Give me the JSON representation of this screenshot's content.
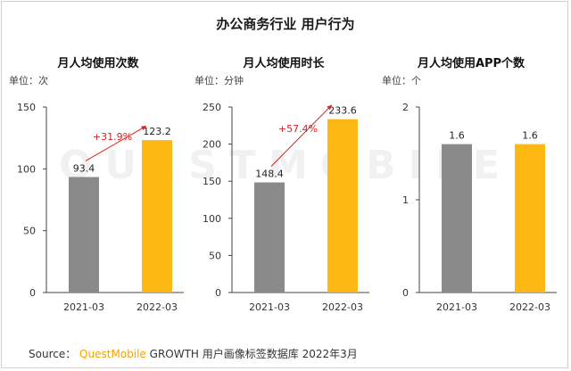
{
  "title": "办公商务行业 用户行为",
  "watermark": "QUESTMOBILE",
  "source": {
    "prefix": "Source：",
    "brand": "QuestMobile",
    "suffix": "GROWTH 用户画像标签数据库 2022年3月"
  },
  "colors": {
    "bar_2021": "#8a8a8a",
    "bar_2022": "#fdb813",
    "growth": "#e02020",
    "axis": "#444444"
  },
  "chart_data": [
    {
      "type": "bar",
      "title": "月人均使用次数",
      "unit_label": "单位：次",
      "categories": [
        "2021-03",
        "2022-03"
      ],
      "values": [
        93.4,
        123.2
      ],
      "value_labels": [
        "93.4",
        "123.2"
      ],
      "ylim": [
        0,
        150
      ],
      "yticks": [
        0,
        50,
        100,
        150
      ],
      "growth_label": "+31.9%"
    },
    {
      "type": "bar",
      "title": "月人均使用时长",
      "unit_label": "单位：分钟",
      "categories": [
        "2021-03",
        "2022-03"
      ],
      "values": [
        148.4,
        233.6
      ],
      "value_labels": [
        "148.4",
        "233.6"
      ],
      "ylim": [
        0,
        250
      ],
      "yticks": [
        0,
        50,
        100,
        150,
        200,
        250
      ],
      "growth_label": "+57.4%"
    },
    {
      "type": "bar",
      "title": "月人均使用APP个数",
      "unit_label": "单位：个",
      "categories": [
        "2021-03",
        "2022-03"
      ],
      "values": [
        1.6,
        1.6
      ],
      "value_labels": [
        "1.6",
        "1.6"
      ],
      "ylim": [
        0,
        2
      ],
      "yticks": [
        0,
        1,
        2
      ],
      "growth_label": ""
    }
  ]
}
